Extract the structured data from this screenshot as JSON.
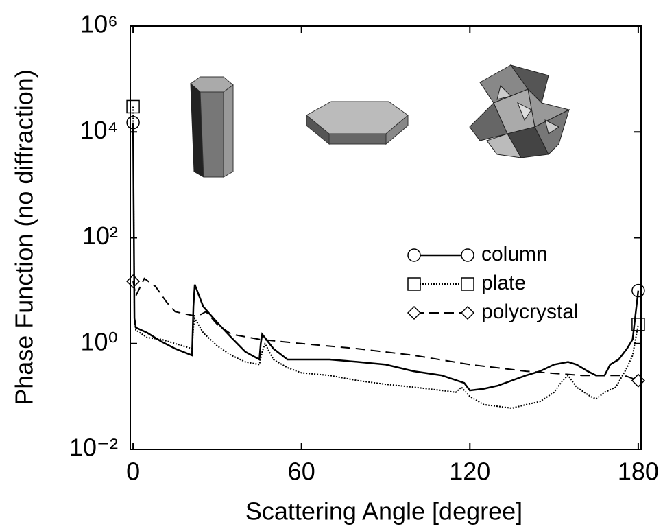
{
  "chart_data": {
    "type": "line",
    "xlabel": "Scattering Angle [degree]",
    "ylabel": "Phase Function (no diffraction)",
    "xlim": [
      -1,
      181
    ],
    "xticks": [
      0,
      60,
      120,
      180
    ],
    "ylim": [
      0.01,
      1000000
    ],
    "ylog": true,
    "yticks": [
      {
        "value": 0.01,
        "label": "10⁻²"
      },
      {
        "value": 1,
        "label": "10⁰"
      },
      {
        "value": 100,
        "label": "10²"
      },
      {
        "value": 10000,
        "label": "10⁴"
      },
      {
        "value": 1000000,
        "label": "10⁶"
      }
    ],
    "series": [
      {
        "name": "column",
        "color": "#000000",
        "linestyle": "solid",
        "marker": "circle",
        "x": [
          0,
          0.5,
          1,
          5,
          10,
          15,
          21,
          21.5,
          22,
          25,
          30,
          35,
          40,
          45,
          45.5,
          46,
          50,
          55,
          60,
          70,
          80,
          90,
          100,
          110,
          118,
          120,
          125,
          130,
          140,
          145,
          150,
          155,
          158,
          162,
          165,
          168,
          170,
          173,
          176,
          178,
          180
        ],
        "values": [
          15000,
          3,
          2,
          1.6,
          1.1,
          0.8,
          0.6,
          5,
          13,
          5,
          2.5,
          1.3,
          0.7,
          0.5,
          1,
          1.5,
          0.8,
          0.5,
          0.5,
          0.5,
          0.45,
          0.4,
          0.3,
          0.25,
          0.18,
          0.13,
          0.14,
          0.16,
          0.25,
          0.3,
          0.4,
          0.45,
          0.4,
          0.3,
          0.25,
          0.25,
          0.4,
          0.5,
          0.8,
          1.2,
          10
        ]
      },
      {
        "name": "plate",
        "color": "#000000",
        "linestyle": "dotted",
        "marker": "square",
        "x": [
          0,
          0.5,
          1,
          5,
          10,
          15,
          21,
          21.5,
          22,
          25,
          30,
          35,
          40,
          45,
          46,
          47,
          50,
          55,
          60,
          70,
          80,
          90,
          100,
          110,
          115,
          117,
          120,
          125,
          130,
          135,
          140,
          145,
          150,
          153,
          155,
          158,
          163,
          165,
          168,
          172,
          176,
          178,
          180
        ],
        "values": [
          30000,
          2.5,
          1.8,
          1.3,
          1.2,
          1,
          0.8,
          2,
          3,
          1.6,
          0.9,
          0.6,
          0.45,
          0.4,
          0.7,
          1,
          0.5,
          0.35,
          0.28,
          0.25,
          0.2,
          0.17,
          0.15,
          0.13,
          0.12,
          0.15,
          0.1,
          0.07,
          0.065,
          0.06,
          0.07,
          0.08,
          0.12,
          0.2,
          0.25,
          0.15,
          0.1,
          0.09,
          0.12,
          0.15,
          0.35,
          0.6,
          2.3
        ]
      },
      {
        "name": "polycrystal",
        "color": "#000000",
        "linestyle": "dashed",
        "marker": "diamond",
        "x": [
          0,
          1,
          4,
          8,
          12,
          15,
          20,
          23,
          26,
          30,
          35,
          45,
          60,
          80,
          100,
          120,
          140,
          160,
          175,
          180
        ],
        "values": [
          15,
          8,
          17,
          12,
          6,
          4,
          3.5,
          3.3,
          4,
          2.3,
          1.5,
          1.2,
          1,
          0.8,
          0.6,
          0.4,
          0.3,
          0.25,
          0.25,
          0.2
        ]
      }
    ]
  }
}
